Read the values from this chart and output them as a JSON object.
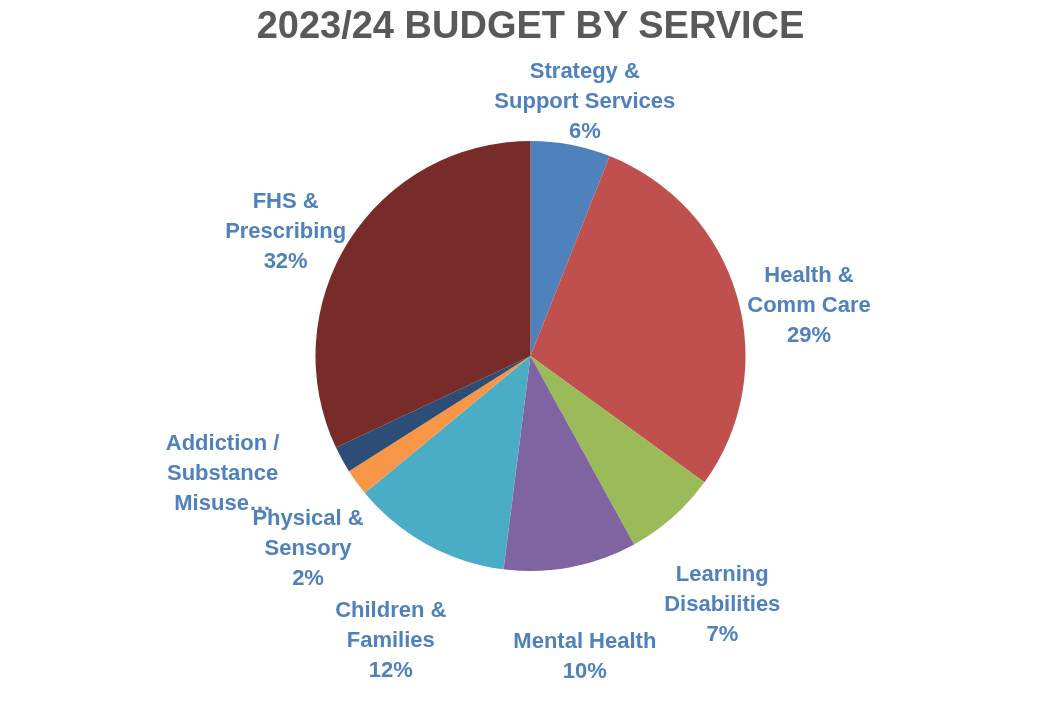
{
  "chart_data": {
    "type": "pie",
    "title": "2023/24 BUDGET BY SERVICE",
    "categories": [
      "Strategy & Support Services",
      "Health & Comm Care",
      "Learning Disabilities",
      "Mental Health",
      "Children & Families",
      "Physical & Sensory",
      "Addiction / Substance Misuse…",
      "FHS & Prescribing"
    ],
    "values": [
      6,
      29,
      7,
      10,
      12,
      2,
      2,
      32
    ],
    "value_labels": [
      "6%",
      "29%",
      "7%",
      "10%",
      "12%",
      "2%",
      null,
      "32%"
    ],
    "colors": [
      "#4f81bd",
      "#c0504d",
      "#9bbb59",
      "#8064a2",
      "#4bacc6",
      "#f79646",
      "#2c4d75",
      "#772c2a"
    ],
    "legend": false
  }
}
